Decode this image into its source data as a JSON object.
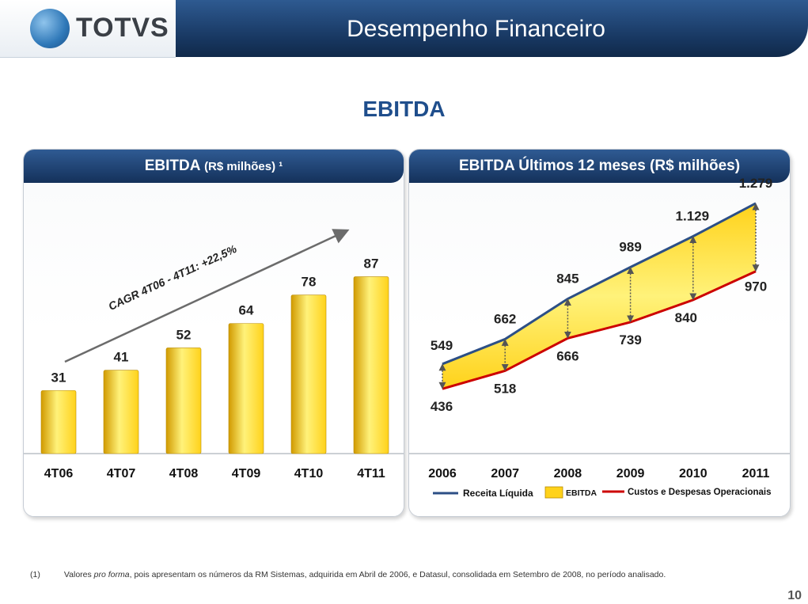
{
  "brand": {
    "name": "TOTVS"
  },
  "page": {
    "title": "Desempenho Financeiro",
    "heading": "EBITDA",
    "number": "10"
  },
  "footnote": {
    "marker": "(1)",
    "prefix": "Valores",
    "italic": "pro forma",
    "text": ", pois apresentam os números da RM Sistemas, adquirida em Abril de 2006, e Datasul, consolidada em Setembro de 2008, no período analisado."
  },
  "colors": {
    "navy": "#1b3d6d",
    "gold_light": "#fff27a",
    "gold": "#ffd21a",
    "gold_dark": "#d19a00",
    "revenue_line": "#2c4f86",
    "cost_line": "#cc0000",
    "arrow": "#6b6b6b"
  },
  "chart_data": [
    {
      "type": "bar",
      "title": "EBITDA",
      "title_unit": "(R$ milhões) ¹",
      "categories": [
        "4T06",
        "4T07",
        "4T08",
        "4T09",
        "4T10",
        "4T11"
      ],
      "values": [
        31,
        41,
        52,
        64,
        78,
        87
      ],
      "ylim": [
        0,
        95
      ],
      "annotation": "CAGR 4T06 - 4T11: +22,5%"
    },
    {
      "type": "area",
      "title": "EBITDA Últimos 12 meses (R$ milhões)",
      "x": [
        "2006",
        "2007",
        "2008",
        "2009",
        "2010",
        "2011"
      ],
      "ylim": [
        300,
        1300
      ],
      "series": [
        {
          "name": "Receita Líquida",
          "values": [
            549,
            662,
            845,
            989,
            1129,
            1279
          ],
          "labels": [
            "549",
            "662",
            "845",
            "989",
            "1.129",
            "1.279"
          ]
        },
        {
          "name": "Custos e Despesas Operacionais",
          "values": [
            436,
            518,
            666,
            739,
            840,
            970
          ],
          "labels": [
            "436",
            "518",
            "666",
            "739",
            "840",
            "970"
          ]
        }
      ],
      "fill_label": "EBITDA",
      "legend": [
        "Receita Líquida",
        "EBITDA",
        "Custos e Despesas Operacionais"
      ]
    }
  ]
}
